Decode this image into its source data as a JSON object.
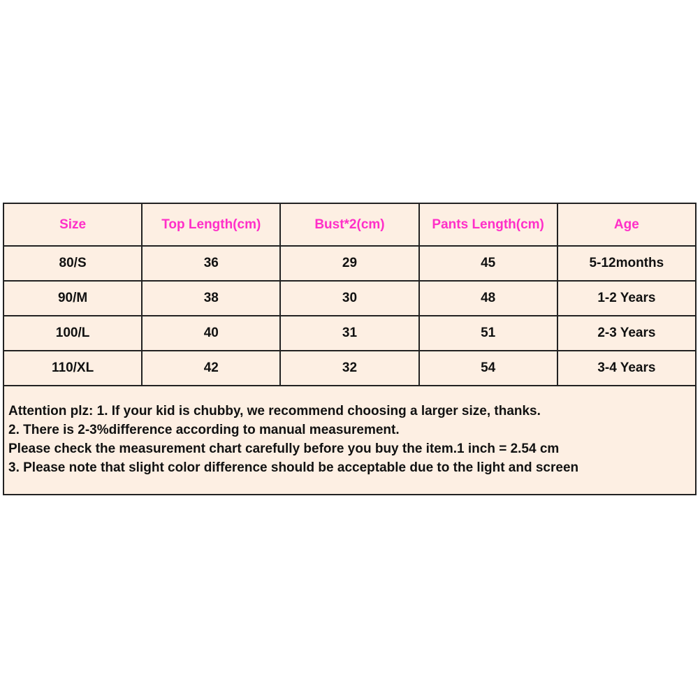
{
  "table": {
    "headers": [
      "Size",
      "Top Length(cm)",
      "Bust*2(cm)",
      "Pants Length(cm)",
      "Age"
    ],
    "rows": [
      [
        "80/S",
        "36",
        "29",
        "45",
        "5-12months"
      ],
      [
        "90/M",
        "38",
        "30",
        "48",
        "1-2 Years"
      ],
      [
        "100/L",
        "40",
        "31",
        "51",
        "2-3 Years"
      ],
      [
        "110/XL",
        "42",
        "32",
        "54",
        "3-4 Years"
      ]
    ]
  },
  "notes": [
    "Attention plz: 1. If your kid is chubby, we recommend choosing a larger size, thanks.",
    "2. There is 2-3%difference according to manual measurement.",
    "Please check the measurement chart carefully before you buy the item.1 inch = 2.54 cm",
    "3. Please note that slight color difference should be acceptable due to the light and screen"
  ],
  "colors": {
    "header_text": "#ff2fc8",
    "background": "#fdefe3",
    "border": "#222222"
  }
}
